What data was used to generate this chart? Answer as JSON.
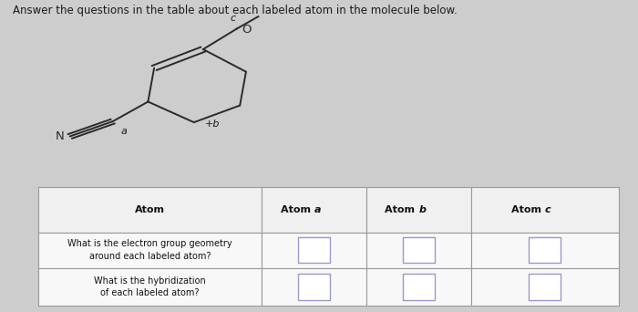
{
  "title": "Answer the questions in the table about each labeled atom in the molecule below.",
  "title_fontsize": 8.5,
  "bg_color": "#cdcdcd",
  "col_labels": [
    "Atom",
    "Atom a",
    "Atom b",
    "Atom c"
  ],
  "row_labels": [
    "What is the electron group geometry\naround each labeled atom?",
    "What is the hybridization\nof each labeled atom?"
  ],
  "header_bg": "#f0f0f0",
  "cell_bg": "#f8f8f8",
  "cell_border": "#999999",
  "box_color": "#9999cc",
  "box_fill": "#ffffff",
  "molecule_color": "#2a2a2a",
  "label_color": "#1a1a1a"
}
